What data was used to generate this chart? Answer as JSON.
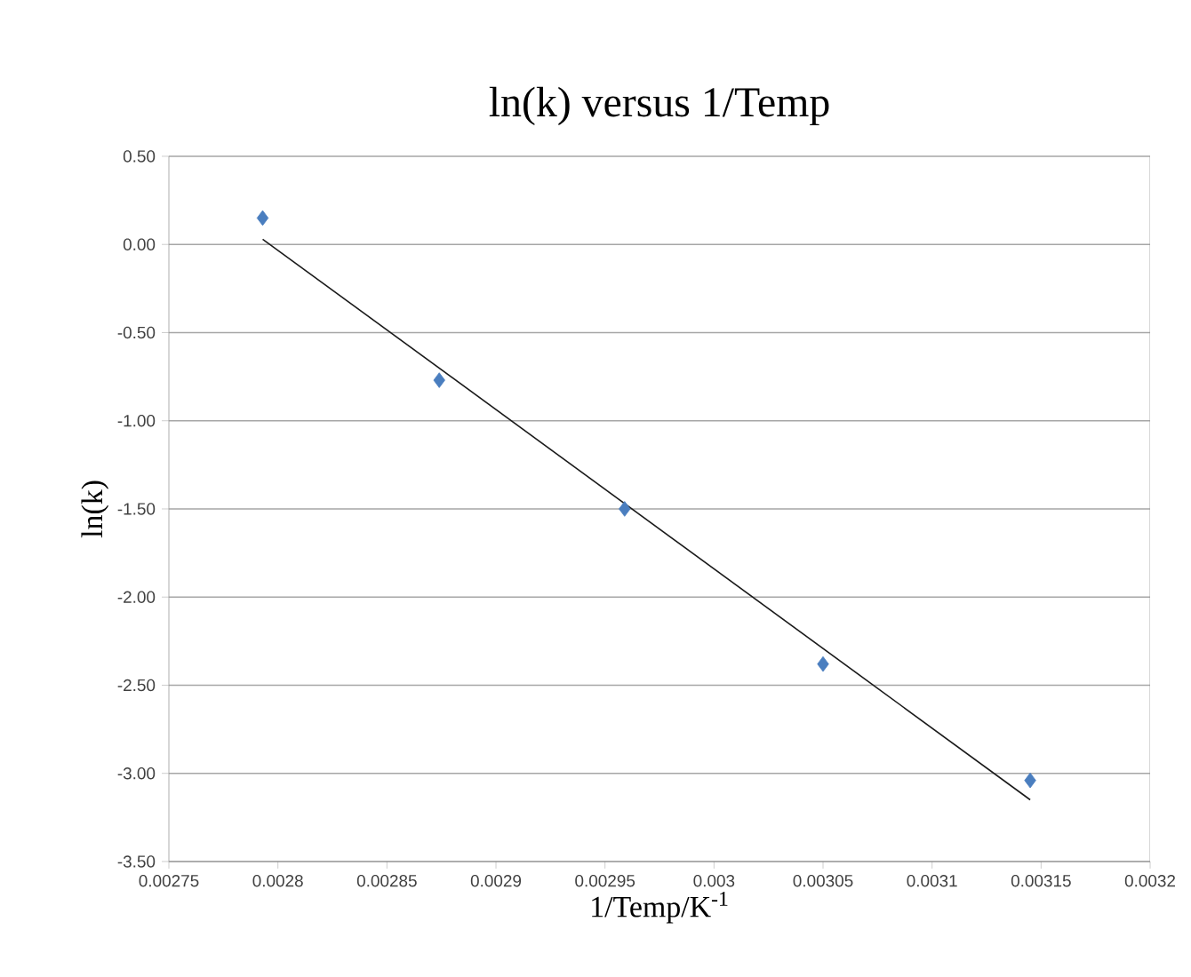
{
  "chart_data": {
    "type": "scatter",
    "title": "ln(k) versus 1/Temp",
    "xlabel": "1/Temp/K$^{-1}$",
    "ylabel": "ln(k)",
    "series": [
      {
        "color": "#4a7ebf",
        "marker": "diamond",
        "x": [
          0.002793,
          0.002874,
          0.002959,
          0.00305,
          0.003145
        ],
        "values": [
          0.15,
          -0.77,
          -1.5,
          -2.38,
          -3.04
        ]
      },
      {
        "type": "line",
        "color": "#1a1a1a",
        "marker": "none",
        "x": [
          0.002793,
          0.003145
        ],
        "values": [
          0.03,
          -3.15
        ]
      }
    ],
    "xlim": [
      0.00275,
      0.0032
    ],
    "ylim": [
      -3.5,
      0.5
    ],
    "xticks": [
      0.00275,
      0.0028,
      0.00285,
      0.0029,
      0.00295,
      0.003,
      0.00305,
      0.0031,
      0.00315,
      0.0032
    ],
    "yticks": [
      {
        "value": -3.5,
        "label": "-3.50"
      },
      {
        "value": -3.0,
        "label": "-3.00"
      },
      {
        "value": -2.5,
        "label": "-2.50"
      },
      {
        "value": -2.0,
        "label": "-2.00"
      },
      {
        "value": -1.5,
        "label": "-1.50"
      },
      {
        "value": -1.0,
        "label": "-1.00"
      },
      {
        "value": -0.5,
        "label": "-0.50"
      },
      {
        "value": 0.0,
        "label": "0.00"
      },
      {
        "value": 0.5,
        "label": "0.50"
      }
    ],
    "grid": "y"
  }
}
